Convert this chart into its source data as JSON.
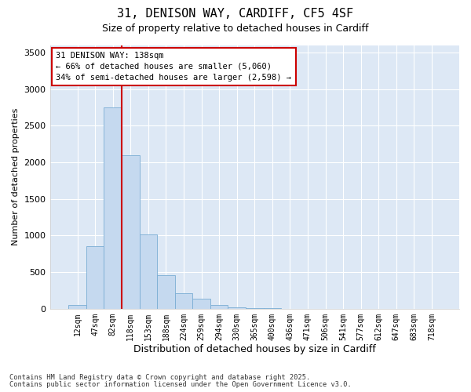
{
  "title1": "31, DENISON WAY, CARDIFF, CF5 4SF",
  "title2": "Size of property relative to detached houses in Cardiff",
  "xlabel": "Distribution of detached houses by size in Cardiff",
  "ylabel": "Number of detached properties",
  "categories": [
    "12sqm",
    "47sqm",
    "82sqm",
    "118sqm",
    "153sqm",
    "188sqm",
    "224sqm",
    "259sqm",
    "294sqm",
    "330sqm",
    "365sqm",
    "400sqm",
    "436sqm",
    "471sqm",
    "506sqm",
    "541sqm",
    "577sqm",
    "612sqm",
    "647sqm",
    "683sqm",
    "718sqm"
  ],
  "values": [
    55,
    850,
    2750,
    2100,
    1020,
    460,
    210,
    140,
    50,
    20,
    10,
    5,
    2,
    0,
    0,
    0,
    0,
    0,
    0,
    0,
    0
  ],
  "bar_color": "#c5d9ef",
  "bar_edgecolor": "#7aadd4",
  "plot_bg_color": "#dde8f5",
  "fig_bg_color": "#ffffff",
  "grid_color": "#ffffff",
  "vline_color": "#cc0000",
  "vline_x": 2.5,
  "annotation_text": "31 DENISON WAY: 138sqm\n← 66% of detached houses are smaller (5,060)\n34% of semi-detached houses are larger (2,598) →",
  "annot_edgecolor": "#cc0000",
  "footnote1": "Contains HM Land Registry data © Crown copyright and database right 2025.",
  "footnote2": "Contains public sector information licensed under the Open Government Licence v3.0.",
  "ylim": [
    0,
    3600
  ],
  "yticks": [
    0,
    500,
    1000,
    1500,
    2000,
    2500,
    3000,
    3500
  ]
}
